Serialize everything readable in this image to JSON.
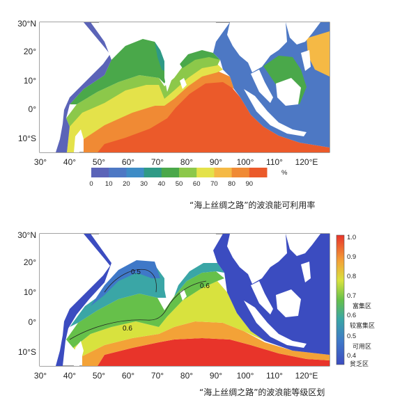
{
  "map1": {
    "lat_labels": [
      "30°N",
      "20°",
      "10°",
      "0°",
      "10°S"
    ],
    "lon_labels": [
      "30°",
      "40°",
      "50°",
      "60°",
      "70°",
      "80°",
      "90°",
      "100°",
      "110°",
      "120°E"
    ],
    "colorbar": {
      "ticks": [
        "0",
        "10",
        "20",
        "30",
        "40",
        "50",
        "60",
        "70",
        "80",
        "90"
      ],
      "unit": "%",
      "colors": [
        "#5b64b8",
        "#4d78c4",
        "#3e8cc6",
        "#2f9a86",
        "#4aa84a",
        "#8cc84a",
        "#e4e24a",
        "#f5b945",
        "#f08a34",
        "#eb5a2a"
      ]
    },
    "caption": "“海上丝绸之路”的波浪能可利用率"
  },
  "map2": {
    "lat_labels": [
      "30°N",
      "20°",
      "10°",
      "0°",
      "10°S"
    ],
    "lon_labels": [
      "30°",
      "40°",
      "50°",
      "60°",
      "70°",
      "80°",
      "90°",
      "100°",
      "110°",
      "120°E"
    ],
    "contour_labels": [
      "0.5",
      "0.6",
      "0.6"
    ],
    "colorbar": {
      "ticks": [
        "1.0",
        "0.9",
        "0.8",
        "0.7",
        "0.6",
        "0.5",
        "0.4"
      ],
      "zones": [
        "富集区",
        "较富集区",
        "可用区",
        "贫乏区"
      ]
    },
    "caption": "“海上丝绸之路”的波浪能等级区划"
  }
}
